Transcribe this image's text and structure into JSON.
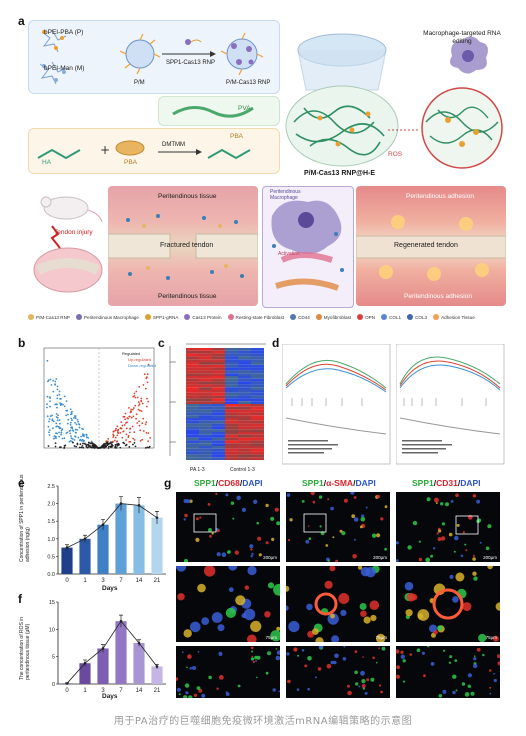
{
  "panel_a": {
    "label": "a",
    "bpei_pba": "bPEI-PBA (P)",
    "bpei_man": "bPEI-Man (M)",
    "pm": "P/M",
    "spp1_rnp": "SPP1-Cas13 RNP",
    "pm_rnp": "P/M-Cas13 RNP",
    "macrophage_editing": "Macrophage-targeted RNA editing",
    "pva": "PVA",
    "ha": "HA",
    "pba": "PBA",
    "dmtmm": "DMTMM",
    "pba2": "PBA",
    "ros": "ROS",
    "gel": "P/M-Cas13 RNP@H-E",
    "tendon_injury": "Tendon injury",
    "peritendinous_tissue_top": "Peritendinous tissue",
    "fractured_tendon": "Fractured tendon",
    "peritendinous_tissue_bottom": "Peritendinous tissue",
    "regenerated_tendon": "Regenerated tendon",
    "peritendinous_adhesion_top": "Peritendinous adhesion",
    "peritendinous_adhesion_bottom": "Peritendinous adhesion",
    "peritendinous_macrophage": "Peritendinous Macrophage",
    "activation": "Activation",
    "legend": [
      {
        "label": "P/M-Cas13 RNP",
        "color": "#e8b460"
      },
      {
        "label": "Peritendinous Macrophage",
        "color": "#7b6fb4"
      },
      {
        "label": "SPP1-gRNA",
        "color": "#e0a030"
      },
      {
        "label": "Cas13 Protein",
        "color": "#8a6fc0"
      },
      {
        "label": "Resting-state Fibroblast",
        "color": "#e07090"
      },
      {
        "label": "CD44",
        "color": "#5577aa"
      },
      {
        "label": "Myofibroblast",
        "color": "#e08840"
      },
      {
        "label": "OPN",
        "color": "#d84040"
      },
      {
        "label": "COL1",
        "color": "#5588cc"
      },
      {
        "label": "COL3",
        "color": "#4466aa"
      },
      {
        "label": "Adhesion Tissue",
        "color": "#f0a050"
      }
    ]
  },
  "panel_b": {
    "label": "b",
    "legend_up": "Up-regulated",
    "legend_down": "Down-regulated",
    "legend_title": "Regulated"
  },
  "panel_c": {
    "label": "c",
    "group1": "PA 1-3",
    "group2": "Control 1-3"
  },
  "panel_d": {
    "label": "d"
  },
  "panel_e": {
    "label": "e",
    "ylabel": "Concentration of SPP1 in peritendinous adhesion (ng/g)",
    "xlabel": "Days"
  },
  "panel_f": {
    "label": "f",
    "ylabel": "The concentration of ROS in peritendinous tissue (μM)",
    "xlabel": "Days"
  },
  "panel_g": {
    "label": "g",
    "col1": {
      "a": "SPP1",
      "b": "CD68",
      "c": "DAPI"
    },
    "col2": {
      "a": "SPP1",
      "b": "α-SMA",
      "c": "DAPI"
    },
    "col3": {
      "a": "SPP1",
      "b": "CD31",
      "c": "DAPI"
    },
    "scale_top": "200μm",
    "scale_mid": "75μm"
  },
  "caption": "用于PA治疗的巨噬细胞免疫微环境激活mRNA编辑策略的示意图",
  "chart_data": [
    {
      "type": "bar",
      "panel": "e",
      "categories": [
        "0",
        "1",
        "3",
        "7",
        "14",
        "21"
      ],
      "values": [
        0.75,
        1.0,
        1.4,
        2.0,
        1.95,
        1.6
      ],
      "errors": [
        0.08,
        0.1,
        0.15,
        0.2,
        0.22,
        0.18
      ],
      "ylim": [
        0,
        2.5
      ],
      "yticks": [
        "0.0",
        "0.5",
        "1.0",
        "1.5",
        "2.0",
        "2.5"
      ],
      "xlabel": "Days",
      "ylabel": "Concentration of SPP1 in peritendinous adhesion (ng/g)",
      "colors": [
        "#1f3f8a",
        "#2d5aa8",
        "#3f7fc4",
        "#5fa0d8",
        "#86bde6",
        "#b3d6ef"
      ],
      "overlay_line": true
    },
    {
      "type": "bar",
      "panel": "f",
      "categories": [
        "0",
        "1",
        "3",
        "7",
        "14",
        "21"
      ],
      "values": [
        0.1,
        3.8,
        6.5,
        11.5,
        7.5,
        3.2
      ],
      "errors": [
        0.1,
        0.6,
        0.7,
        1.1,
        0.6,
        0.4
      ],
      "ylim": [
        0,
        15
      ],
      "yticks": [
        "0",
        "5",
        "10",
        "15"
      ],
      "xlabel": "Days",
      "ylabel": "The concentration of ROS in peritendinous tissue (μM)",
      "colors": [
        "#5a3c8c",
        "#6a4a9e",
        "#7d5eb2",
        "#9278c4",
        "#aa95d4",
        "#c4b5e4"
      ],
      "overlay_line": true
    }
  ]
}
